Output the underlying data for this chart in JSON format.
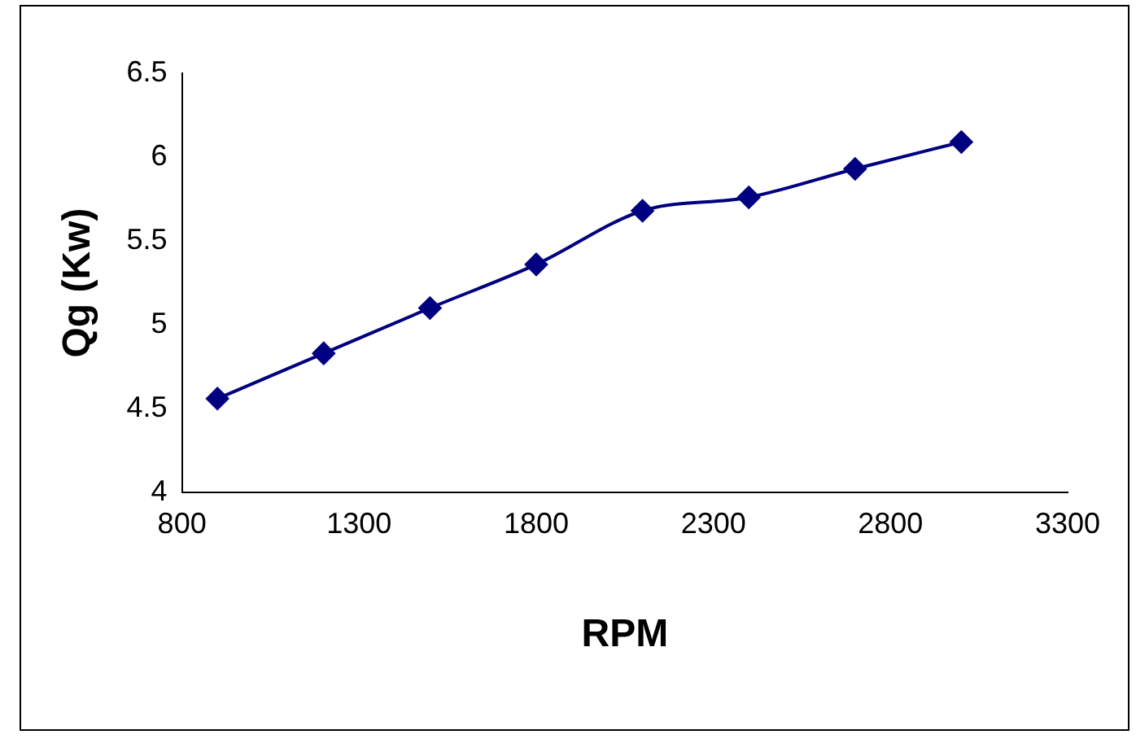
{
  "chart_data": {
    "type": "line",
    "xlabel": "RPM",
    "ylabel": "Qg (Kw)",
    "x": [
      900,
      1200,
      1500,
      1800,
      2100,
      2400,
      2700,
      3000
    ],
    "series": [
      {
        "color": "#000080",
        "values": [
          4.56,
          4.83,
          5.1,
          5.36,
          5.68,
          5.76,
          5.93,
          6.09
        ]
      }
    ],
    "xlim": [
      800,
      3300
    ],
    "xticks": [
      800,
      1300,
      1800,
      2300,
      2800,
      3300
    ],
    "ylim": [
      4,
      6.5
    ],
    "yticks": [
      4,
      4.5,
      5,
      5.5,
      6,
      6.5
    ],
    "grid": false,
    "legend": false,
    "marker": "diamond",
    "line_style": "solid"
  }
}
